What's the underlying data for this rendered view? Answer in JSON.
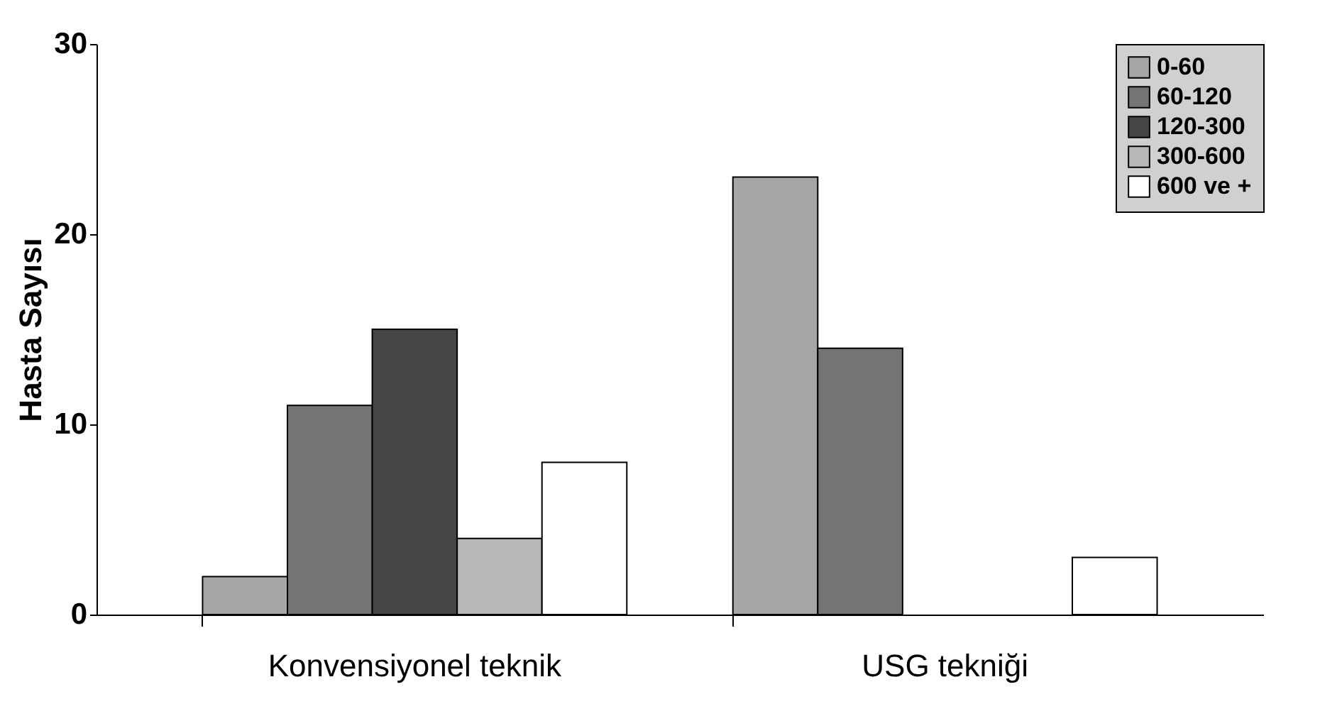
{
  "chart_data": {
    "type": "bar",
    "ylabel": "Hasta Sayısı",
    "categories": [
      "Konvensiyonel teknik",
      "USG tekniği"
    ],
    "series": [
      {
        "name": "0-60",
        "color": "#a6a6a6",
        "values": [
          2,
          23
        ]
      },
      {
        "name": "60-120",
        "color": "#747474",
        "values": [
          11,
          14
        ]
      },
      {
        "name": "120-300",
        "color": "#454545",
        "values": [
          15,
          null
        ]
      },
      {
        "name": "300-600",
        "color": "#b8b8b8",
        "values": [
          4,
          null
        ]
      },
      {
        "name": "600 ve +",
        "color": "#ffffff",
        "values": [
          8,
          3
        ]
      }
    ],
    "ylim": [
      0,
      30
    ],
    "yticks": [
      0,
      10,
      20,
      30
    ],
    "grid": false,
    "legend": "top right"
  }
}
